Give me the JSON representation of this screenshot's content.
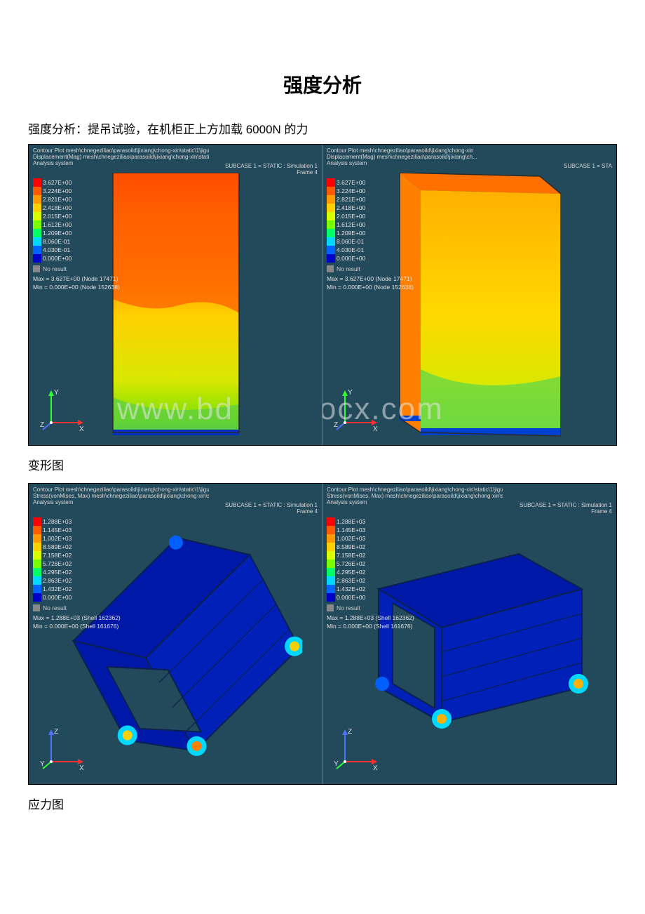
{
  "title": "强度分析",
  "description": "强度分析：提吊试验，在机柜正上方加载 6000N 的力",
  "caption1": "变形图",
  "caption2": "应力图",
  "watermark": "www.bdocx.com",
  "path_full": "Contour Plot mesh\\chnegeziliao\\parasoild\\jixiang\\chong-xin\\static\\1\\jigui.op2",
  "path_cut": "Contour Plot mesh\\chnegeziliao\\parasoild\\jixiang\\chong-xin",
  "result_disp": "Displacement(Mag)  mesh\\chnegeziliao\\parasoild\\jixiang\\chong-xin\\static\\1\\j...",
  "result_disp_cut": "Displacement(Mag)  mesh\\chnegeziliao\\parasoild\\jixiang\\ch...",
  "result_stress": "Stress(vonMises, Max)  mesh\\chnegeziliao\\parasoild\\jixiang\\chong-xin\\static\\1\\j...",
  "analysis": "Analysis system",
  "subcase": "SUBCASE 1 = STATIC : Simulation 1",
  "subcase_cut": "SUBCASE 1 = STA",
  "frame": "Frame 4",
  "noresult": "No result",
  "disp": {
    "values": [
      "3.627E+00",
      "3.224E+00",
      "2.821E+00",
      "2.418E+00",
      "2.015E+00",
      "1.612E+00",
      "1.209E+00",
      "8.060E-01",
      "4.030E-01",
      "0.000E+00"
    ],
    "colors": [
      "#ff0000",
      "#ff5a00",
      "#ff9a00",
      "#ffd000",
      "#d8ff00",
      "#7aff00",
      "#00ff64",
      "#00d8ff",
      "#0064ff",
      "#0000c8"
    ],
    "max": "Max = 3.627E+00 (Node 17471)",
    "min": "Min = 0.000E+00 (Node 152638)"
  },
  "stress": {
    "values": [
      "1.288E+03",
      "1.145E+03",
      "1.002E+03",
      "8.589E+02",
      "7.158E+02",
      "5.726E+02",
      "4.295E+02",
      "2.863E+02",
      "1.432E+02",
      "0.000E+00"
    ],
    "colors": [
      "#ff0000",
      "#ff5a00",
      "#ff9a00",
      "#ffd000",
      "#d8ff00",
      "#7aff00",
      "#00ff64",
      "#00d8ff",
      "#0064ff",
      "#0000c8"
    ],
    "max": "Max = 1.288E+03 (Shell 162362)",
    "min": "Min = 0.000E+00 (Shell 161676)"
  },
  "axis": {
    "x": "X",
    "y": "Y",
    "z": "Z"
  },
  "axis_colors": {
    "x": "#ff3030",
    "y": "#30ff30",
    "z": "#5070ff"
  }
}
